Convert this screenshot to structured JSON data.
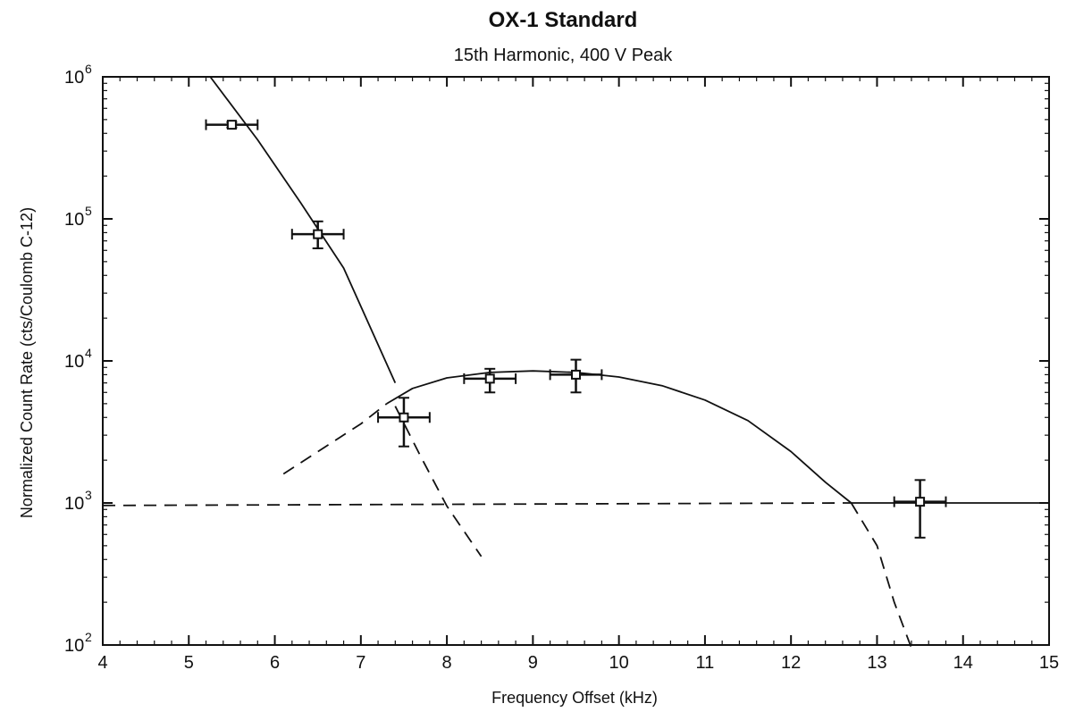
{
  "chart_data": {
    "type": "scatter",
    "title": "OX-1 Standard",
    "subtitle": "15th Harmonic, 400 V Peak",
    "xlabel": "Frequency Offset (kHz)",
    "ylabel": "Normalized Count Rate (cts/Coulomb C-12)",
    "xlim": [
      4,
      15
    ],
    "ylim": [
      100,
      1000000
    ],
    "yscale": "log",
    "grid": false,
    "x_ticks": [
      "4",
      "5",
      "6",
      "7",
      "8",
      "9",
      "10",
      "11",
      "12",
      "13",
      "14",
      "15"
    ],
    "y_ticks": [
      {
        "base": "10",
        "exp": "2",
        "value": 100
      },
      {
        "base": "10",
        "exp": "3",
        "value": 1000
      },
      {
        "base": "10",
        "exp": "4",
        "value": 10000
      },
      {
        "base": "10",
        "exp": "5",
        "value": 100000
      },
      {
        "base": "10",
        "exp": "6",
        "value": 1000000
      }
    ],
    "data_points": [
      {
        "x": 5.5,
        "y": 460000,
        "x_err": 0.3,
        "y_lo": 440000,
        "y_hi": 480000
      },
      {
        "x": 6.5,
        "y": 78000,
        "x_err": 0.3,
        "y_lo": 62000,
        "y_hi": 96000
      },
      {
        "x": 7.5,
        "y": 4000,
        "x_err": 0.3,
        "y_lo": 2500,
        "y_hi": 5500
      },
      {
        "x": 8.5,
        "y": 7500,
        "x_err": 0.3,
        "y_lo": 6000,
        "y_hi": 8800
      },
      {
        "x": 9.5,
        "y": 8000,
        "x_err": 0.3,
        "y_lo": 6000,
        "y_hi": 10200
      },
      {
        "x": 13.5,
        "y": 1020,
        "x_err": 0.3,
        "y_lo": 570,
        "y_hi": 1450
      }
    ],
    "curves": [
      {
        "style": "solid",
        "x": [
          5.25,
          5.8,
          6.3,
          6.8,
          7.4
        ],
        "y": [
          1000000,
          360000,
          130000,
          45000,
          7000
        ]
      },
      {
        "style": "solid",
        "x": [
          7.3,
          7.6,
          8.0,
          8.5,
          9.0,
          9.5,
          10.0,
          10.5,
          11.0,
          11.5,
          12.0,
          12.4,
          12.7
        ],
        "y": [
          5000,
          6400,
          7600,
          8300,
          8500,
          8300,
          7700,
          6700,
          5300,
          3800,
          2300,
          1400,
          1000
        ]
      },
      {
        "style": "solid",
        "x": [
          12.7,
          15.0
        ],
        "y": [
          1000,
          1000
        ]
      },
      {
        "style": "dashed",
        "x": [
          6.1,
          6.5,
          7.0,
          7.3
        ],
        "y": [
          1600,
          2300,
          3600,
          5000
        ]
      },
      {
        "style": "dashed",
        "x": [
          7.4,
          7.7,
          8.0,
          8.4
        ],
        "y": [
          4800,
          2100,
          950,
          420
        ]
      },
      {
        "style": "dashed",
        "x": [
          4.0,
          12.7
        ],
        "y": [
          960,
          1000
        ]
      },
      {
        "style": "dashed",
        "x": [
          12.7,
          13.0,
          13.2,
          13.4
        ],
        "y": [
          1000,
          500,
          200,
          95
        ]
      }
    ]
  }
}
